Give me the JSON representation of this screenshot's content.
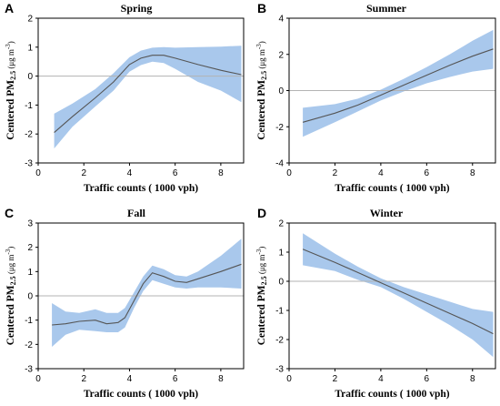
{
  "chart_data": [
    {
      "type": "line",
      "panel_label": "A",
      "title": "Spring",
      "xlabel": "Traffic counts ( 1000 vph)",
      "ylabel_main": "Centered PM",
      "ylabel_sub": "2.5",
      "ylabel_unit_pre": " (μg m",
      "ylabel_unit_sup": "-3",
      "ylabel_unit_post": ")",
      "xlim": [
        0,
        9
      ],
      "ylim": [
        -3,
        2
      ],
      "xticks": [
        0,
        2,
        4,
        6,
        8
      ],
      "yticks": [
        -3,
        -2,
        -1,
        0,
        1,
        2
      ],
      "reference_line": 0,
      "series": [
        {
          "x": [
            0.7,
            1.5,
            2.5,
            3.3,
            4.0,
            4.5,
            5.0,
            5.5,
            6.0,
            7.0,
            8.0,
            8.9
          ],
          "y": [
            -1.95,
            -1.4,
            -0.75,
            -0.2,
            0.4,
            0.62,
            0.72,
            0.72,
            0.62,
            0.4,
            0.2,
            0.05
          ],
          "lower": [
            -2.5,
            -1.75,
            -1.05,
            -0.5,
            0.15,
            0.38,
            0.5,
            0.45,
            0.25,
            -0.2,
            -0.5,
            -0.9
          ],
          "upper": [
            -1.3,
            -0.95,
            -0.45,
            0.1,
            0.65,
            0.88,
            0.98,
            1.0,
            0.98,
            1.0,
            1.02,
            1.05
          ]
        }
      ],
      "colors": {
        "band": "#a9c8ec",
        "line": "#555555",
        "reference": "#b3b3b3"
      }
    },
    {
      "type": "line",
      "panel_label": "B",
      "title": "Summer",
      "xlabel": "Traffic counts ( 1000 vph)",
      "ylabel_main": "Centered PM",
      "ylabel_sub": "2.5",
      "ylabel_unit_pre": " (μg m",
      "ylabel_unit_sup": "-3",
      "ylabel_unit_post": ")",
      "xlim": [
        0,
        9
      ],
      "ylim": [
        -4,
        4
      ],
      "xticks": [
        0,
        2,
        4,
        6,
        8
      ],
      "yticks": [
        -4,
        -2,
        0,
        2,
        4
      ],
      "reference_line": 0,
      "series": [
        {
          "x": [
            0.6,
            2.0,
            3.0,
            4.0,
            5.0,
            6.0,
            7.0,
            8.0,
            8.9
          ],
          "y": [
            -1.75,
            -1.25,
            -0.8,
            -0.25,
            0.3,
            0.85,
            1.4,
            1.9,
            2.3
          ],
          "lower": [
            -2.55,
            -1.75,
            -1.15,
            -0.55,
            -0.05,
            0.4,
            0.75,
            1.05,
            1.2
          ],
          "upper": [
            -0.95,
            -0.75,
            -0.45,
            0.05,
            0.65,
            1.3,
            2.0,
            2.75,
            3.35
          ]
        }
      ],
      "colors": {
        "band": "#a9c8ec",
        "line": "#555555",
        "reference": "#b3b3b3"
      }
    },
    {
      "type": "line",
      "panel_label": "C",
      "title": "Fall",
      "xlabel": "Traffic counts ( 1000 vph)",
      "ylabel_main": "Centered PM",
      "ylabel_sub": "2.5",
      "ylabel_unit_pre": " (μg m",
      "ylabel_unit_sup": "-3",
      "ylabel_unit_post": ")",
      "xlim": [
        0,
        9
      ],
      "ylim": [
        -3,
        3
      ],
      "xticks": [
        0,
        2,
        4,
        6,
        8
      ],
      "yticks": [
        -3,
        -2,
        -1,
        0,
        1,
        2,
        3
      ],
      "reference_line": 0,
      "series": [
        {
          "x": [
            0.6,
            1.2,
            1.8,
            2.5,
            3.0,
            3.5,
            3.8,
            4.2,
            4.6,
            5.0,
            5.5,
            6.0,
            6.5,
            7.0,
            8.0,
            8.9
          ],
          "y": [
            -1.2,
            -1.15,
            -1.05,
            -1.0,
            -1.15,
            -1.1,
            -0.9,
            -0.2,
            0.5,
            0.95,
            0.8,
            0.6,
            0.55,
            0.7,
            1.0,
            1.3
          ],
          "lower": [
            -2.1,
            -1.6,
            -1.4,
            -1.45,
            -1.5,
            -1.5,
            -1.3,
            -0.5,
            0.2,
            0.65,
            0.5,
            0.35,
            0.3,
            0.35,
            0.35,
            0.3
          ],
          "upper": [
            -0.3,
            -0.65,
            -0.7,
            -0.55,
            -0.7,
            -0.7,
            -0.5,
            0.15,
            0.8,
            1.25,
            1.1,
            0.85,
            0.8,
            1.0,
            1.65,
            2.35
          ]
        }
      ],
      "colors": {
        "band": "#a9c8ec",
        "line": "#555555",
        "reference": "#b3b3b3"
      }
    },
    {
      "type": "line",
      "panel_label": "D",
      "title": "Winter",
      "xlabel": "Traffic counts ( 1000 vph)",
      "ylabel_main": "Centered PM",
      "ylabel_sub": "2.5",
      "ylabel_unit_pre": " (μg m",
      "ylabel_unit_sup": "-3",
      "ylabel_unit_post": ")",
      "xlim": [
        0,
        9
      ],
      "ylim": [
        -3,
        2
      ],
      "xticks": [
        0,
        2,
        4,
        6,
        8
      ],
      "yticks": [
        -3,
        -2,
        -1,
        0,
        1,
        2
      ],
      "reference_line": 0,
      "series": [
        {
          "x": [
            0.6,
            2.0,
            3.0,
            4.0,
            5.0,
            6.0,
            7.0,
            8.0,
            8.9
          ],
          "y": [
            1.1,
            0.65,
            0.3,
            -0.05,
            -0.4,
            -0.75,
            -1.1,
            -1.45,
            -1.8
          ],
          "lower": [
            0.55,
            0.35,
            0.05,
            -0.2,
            -0.6,
            -1.05,
            -1.5,
            -2.0,
            -2.6
          ],
          "upper": [
            1.65,
            0.95,
            0.5,
            0.1,
            -0.2,
            -0.45,
            -0.7,
            -0.95,
            -1.05
          ]
        }
      ],
      "colors": {
        "band": "#a9c8ec",
        "line": "#555555",
        "reference": "#b3b3b3"
      }
    }
  ]
}
